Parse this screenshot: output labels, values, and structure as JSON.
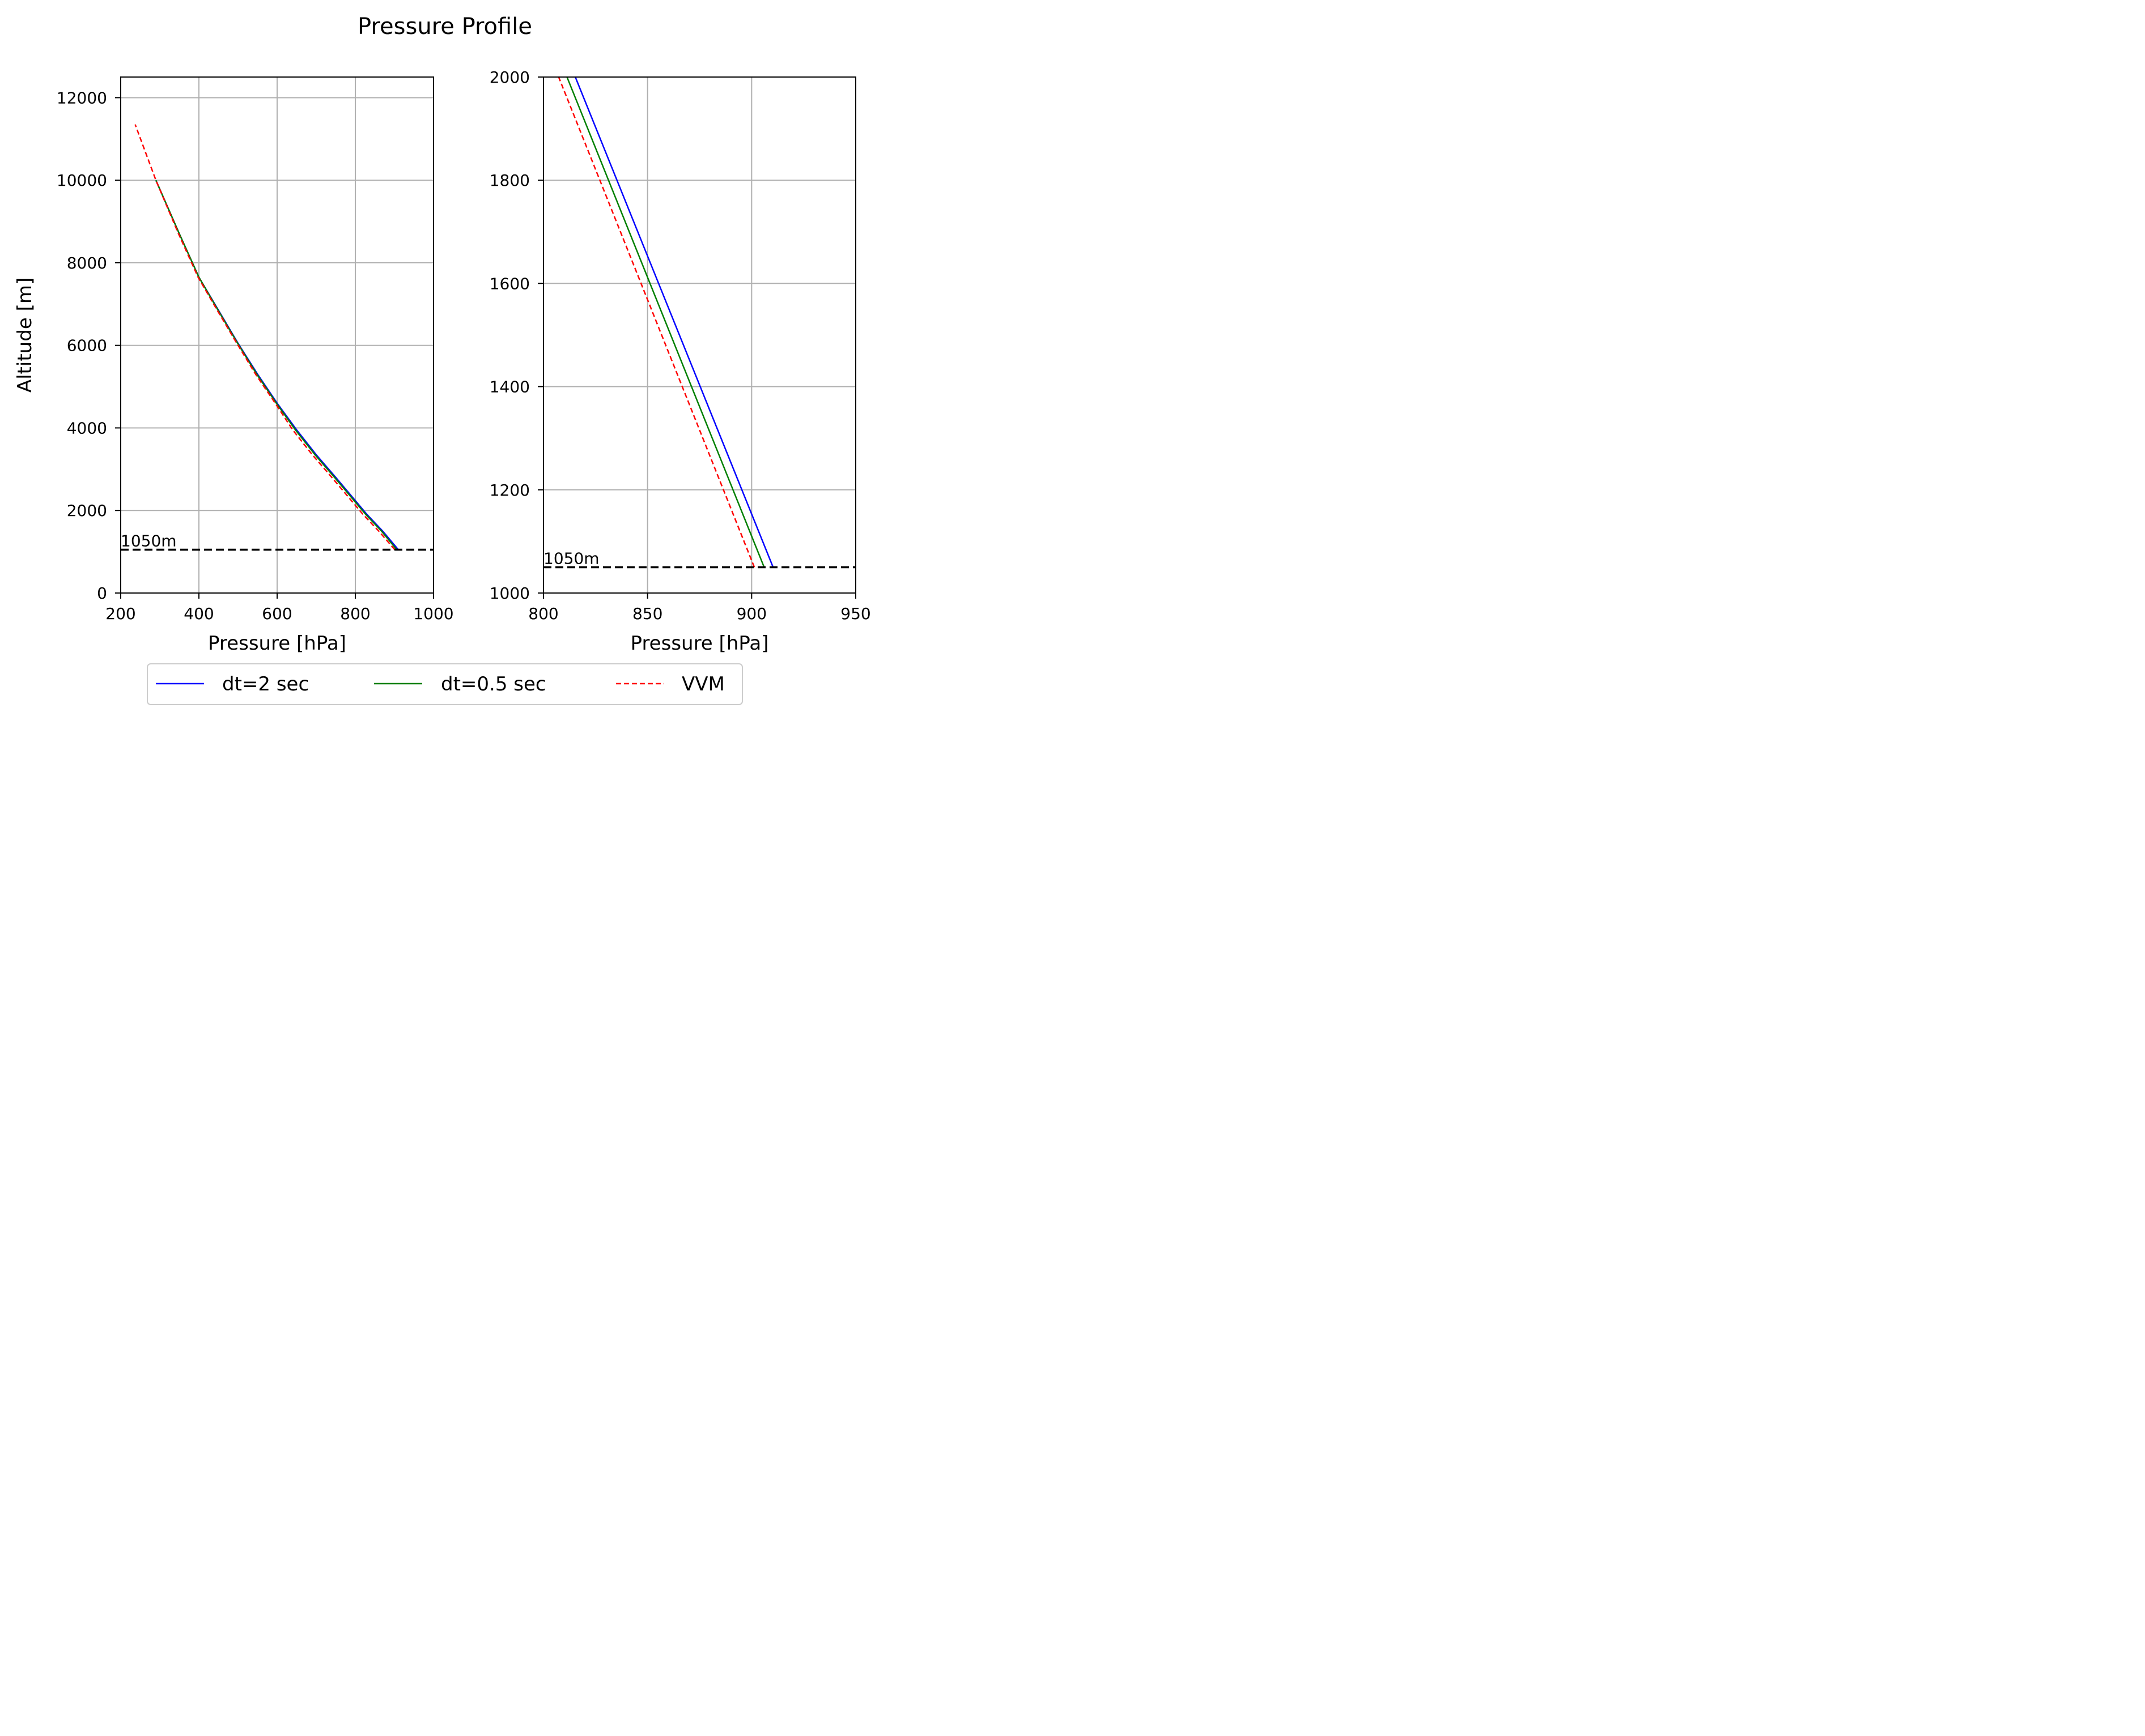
{
  "chart_data": [
    {
      "type": "line",
      "title": "Pressure Profile",
      "xlabel": "Pressure [hPa]",
      "ylabel": "Altitude [m]",
      "xlim": [
        200,
        1000
      ],
      "ylim": [
        0,
        12500
      ],
      "xticks": [
        200,
        400,
        600,
        800,
        1000
      ],
      "yticks": [
        0,
        2000,
        4000,
        6000,
        8000,
        10000,
        12000
      ],
      "grid": true,
      "series": [
        {
          "name": "dt=2 sec",
          "color": "#0000ff",
          "style": "solid",
          "x": [
            910,
            870,
            830,
            790,
            750,
            700,
            650,
            600,
            550,
            500,
            450,
            400,
            350,
            290
          ],
          "y": [
            1050,
            1500,
            1900,
            2350,
            2800,
            3350,
            3950,
            4600,
            5300,
            6050,
            6850,
            7650,
            8700,
            10000
          ]
        },
        {
          "name": "dt=0.5 sec",
          "color": "#008000",
          "style": "solid",
          "x": [
            906,
            867,
            827,
            787,
            747,
            697,
            647,
            598,
            548,
            499,
            449,
            400,
            350,
            290
          ],
          "y": [
            1050,
            1500,
            1900,
            2350,
            2800,
            3350,
            3950,
            4600,
            5300,
            6050,
            6850,
            7650,
            8700,
            10000
          ]
        },
        {
          "name": "VVM",
          "color": "#ff0000",
          "style": "dashed",
          "x": [
            901,
            860,
            820,
            780,
            740,
            690,
            640,
            595,
            545,
            497,
            447,
            398,
            348,
            290,
            237
          ],
          "y": [
            1050,
            1500,
            1900,
            2350,
            2800,
            3350,
            3950,
            4600,
            5300,
            6050,
            6850,
            7650,
            8700,
            10000,
            11350
          ]
        }
      ],
      "hline": {
        "y": 1050,
        "label": "1050m",
        "color": "#000000",
        "style": "dashed"
      }
    },
    {
      "type": "line",
      "title": "",
      "xlabel": "Pressure [hPa]",
      "ylabel": "",
      "xlim": [
        800,
        950
      ],
      "ylim": [
        1000,
        2000
      ],
      "xticks": [
        800,
        850,
        900,
        950
      ],
      "yticks": [
        1000,
        1200,
        1400,
        1600,
        1800,
        2000
      ],
      "grid": true,
      "series": [
        {
          "name": "dt=2 sec",
          "color": "#0000ff",
          "style": "solid",
          "x": [
            910.3,
            815.3
          ],
          "y": [
            1050,
            2000
          ]
        },
        {
          "name": "dt=0.5 sec",
          "color": "#008000",
          "style": "solid",
          "x": [
            906,
            811.3
          ],
          "y": [
            1050,
            2000
          ]
        },
        {
          "name": "VVM",
          "color": "#ff0000",
          "style": "dashed",
          "x": [
            901.3,
            807.3
          ],
          "y": [
            1050,
            2000
          ]
        }
      ],
      "hline": {
        "y": 1050,
        "label": "1050m",
        "color": "#000000",
        "style": "dashed"
      }
    }
  ],
  "legend": {
    "placement": "bottom-center",
    "entries": [
      {
        "label": "dt=2 sec",
        "color": "#0000ff",
        "style": "solid"
      },
      {
        "label": "dt=0.5 sec",
        "color": "#008000",
        "style": "solid"
      },
      {
        "label": "VVM",
        "color": "#ff0000",
        "style": "dashed"
      }
    ]
  }
}
